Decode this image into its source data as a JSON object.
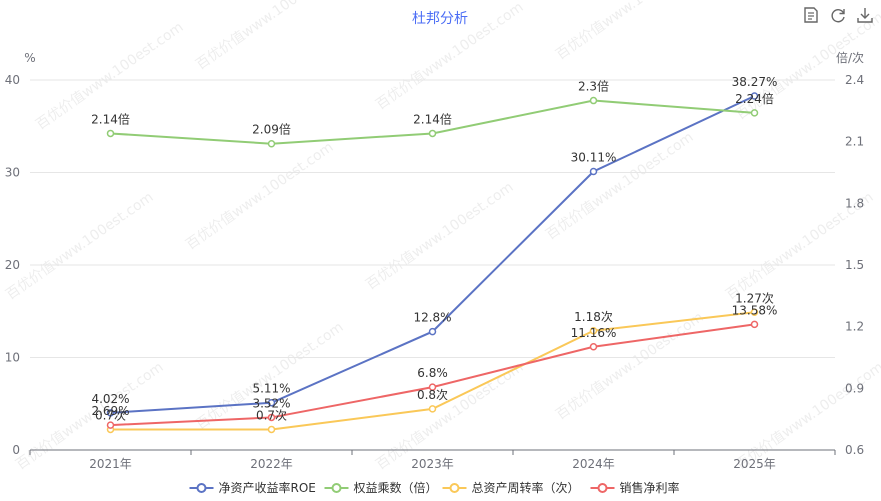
{
  "chart_data": {
    "type": "line",
    "title": "杜邦分析",
    "categories": [
      "2021年",
      "2022年",
      "2023年",
      "2024年",
      "2025年"
    ],
    "y_left": {
      "unit": "%",
      "range": [
        0,
        40
      ],
      "ticks": [
        0,
        10,
        20,
        30,
        40
      ]
    },
    "y_right": {
      "unit": "倍/次",
      "range": [
        0.6,
        2.4
      ],
      "ticks": [
        "0.6",
        "0.9",
        "1.2",
        "1.5",
        "1.8",
        "2.1",
        "2.4"
      ]
    },
    "grid": true,
    "legend_position": "bottom",
    "series": [
      {
        "name": "净资产收益率ROE",
        "axis": "left",
        "color": "#5b73c4",
        "values": [
          4.02,
          5.11,
          12.8,
          30.11,
          38.27
        ],
        "labels": [
          "4.02%",
          "5.11%",
          "12.8%",
          "30.11%",
          "38.27%"
        ]
      },
      {
        "name": "权益乘数（倍）",
        "axis": "right",
        "color": "#91cc75",
        "values": [
          2.14,
          2.09,
          2.14,
          2.3,
          2.24
        ],
        "labels": [
          "2.14倍",
          "2.09倍",
          "2.14倍",
          "2.3倍",
          "2.24倍"
        ]
      },
      {
        "name": "总资产周转率（次）",
        "axis": "right",
        "color": "#fac858",
        "values": [
          0.7,
          0.7,
          0.8,
          1.18,
          1.27
        ],
        "labels": [
          "0.7次",
          "0.7次",
          "0.8次",
          "1.18次",
          "1.27次"
        ]
      },
      {
        "name": "销售净利率",
        "axis": "left",
        "color": "#ee6666",
        "values": [
          2.69,
          3.52,
          6.8,
          11.16,
          13.58
        ],
        "labels": [
          "2.69%",
          "3.52%",
          "6.8%",
          "11.16%",
          "13.58%"
        ]
      }
    ]
  },
  "toolbar": {
    "icons": [
      "data-view-icon",
      "refresh-icon",
      "download-icon"
    ]
  },
  "watermark": "百优价值www.100est.com"
}
